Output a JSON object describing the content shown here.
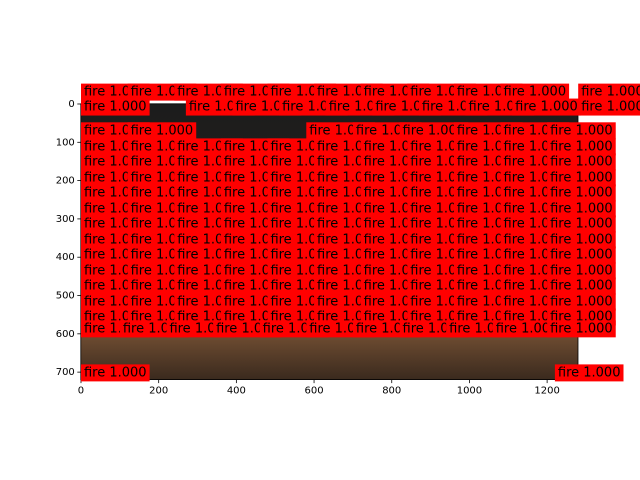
{
  "chart_data": {
    "type": "image",
    "label": "fire 1.000",
    "xlim": [
      -0.5,
      1279.5
    ],
    "ylim": [
      719.5,
      -0.5
    ],
    "xticks": [
      0,
      200,
      400,
      600,
      800,
      1000,
      1200
    ],
    "yticks": [
      0,
      100,
      200,
      300,
      400,
      500,
      600,
      700
    ],
    "box_color": "#ff0000",
    "detections": [
      {
        "y": -31,
        "x": [
          0,
          120,
          240,
          360,
          480,
          600,
          720,
          840,
          960,
          1080,
          1280
        ]
      },
      {
        "y": 8,
        "x": [
          0,
          270,
          390,
          510,
          630,
          750,
          870,
          990,
          1110,
          1280
        ]
      },
      {
        "y": 70,
        "x": [
          0,
          120,
          580,
          700,
          820,
          960,
          1080,
          1200
        ]
      },
      {
        "y": 112,
        "x": [
          0,
          120,
          240,
          360,
          480,
          600,
          720,
          840,
          960,
          1080,
          1200
        ]
      },
      {
        "y": 151,
        "x": [
          0,
          120,
          240,
          360,
          480,
          600,
          720,
          840,
          960,
          1080,
          1200
        ]
      },
      {
        "y": 193,
        "x": [
          0,
          120,
          240,
          360,
          480,
          600,
          720,
          840,
          960,
          1080,
          1200
        ]
      },
      {
        "y": 232,
        "x": [
          0,
          120,
          240,
          360,
          480,
          600,
          720,
          840,
          960,
          1080,
          1200
        ]
      },
      {
        "y": 274,
        "x": [
          0,
          120,
          240,
          360,
          480,
          600,
          720,
          840,
          960,
          1080,
          1200
        ]
      },
      {
        "y": 313,
        "x": [
          0,
          120,
          240,
          360,
          480,
          600,
          720,
          840,
          960,
          1080,
          1200
        ]
      },
      {
        "y": 355,
        "x": [
          0,
          120,
          240,
          360,
          480,
          600,
          720,
          840,
          960,
          1080,
          1200
        ]
      },
      {
        "y": 394,
        "x": [
          0,
          120,
          240,
          360,
          480,
          600,
          720,
          840,
          960,
          1080,
          1200
        ]
      },
      {
        "y": 436,
        "x": [
          0,
          120,
          240,
          360,
          480,
          600,
          720,
          840,
          960,
          1080,
          1200
        ]
      },
      {
        "y": 475,
        "x": [
          0,
          120,
          240,
          360,
          480,
          600,
          720,
          840,
          960,
          1080,
          1200
        ]
      },
      {
        "y": 517,
        "x": [
          0,
          120,
          240,
          360,
          480,
          600,
          720,
          840,
          960,
          1080,
          1200
        ]
      },
      {
        "y": 556,
        "x": [
          0,
          120,
          240,
          360,
          480,
          600,
          720,
          840,
          960,
          1080,
          1200
        ]
      },
      {
        "y": 587,
        "x": [
          0,
          100,
          220,
          340,
          460,
          580,
          700,
          820,
          940,
          1060,
          1200
        ]
      },
      {
        "y": 702,
        "x": [
          0,
          1220
        ]
      }
    ]
  }
}
